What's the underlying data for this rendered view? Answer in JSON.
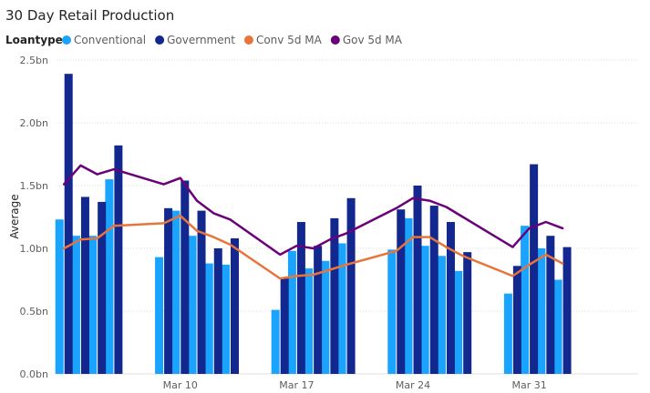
{
  "chart_data": {
    "type": "bar",
    "title": "30 Day Retail Production",
    "legend": {
      "title": "Loantype",
      "position": "top-left",
      "entries": [
        {
          "label": "Conventional",
          "color": "#1aa3ff",
          "kind": "bar"
        },
        {
          "label": "Government",
          "color": "#13288e",
          "kind": "bar"
        },
        {
          "label": "Conv 5d MA",
          "color": "#e8743b",
          "kind": "line"
        },
        {
          "label": "Gov 5d MA",
          "color": "#6b007b",
          "kind": "line"
        }
      ]
    },
    "ylabel": "Average",
    "ylim": [
      0,
      2.5
    ],
    "yticks": [
      {
        "value": 0,
        "label": "0.0bn"
      },
      {
        "value": 0.5,
        "label": "0.5bn"
      },
      {
        "value": 1.0,
        "label": "1.0bn"
      },
      {
        "value": 1.5,
        "label": "1.5bn"
      },
      {
        "value": 2.0,
        "label": "2.0bn"
      },
      {
        "value": 2.5,
        "label": "2.5bn"
      }
    ],
    "grid": true,
    "x_domain": [
      2.55,
      37.55
    ],
    "xticks": [
      {
        "value": 10,
        "label": "Mar 10"
      },
      {
        "value": 17,
        "label": "Mar 17"
      },
      {
        "value": 24,
        "label": "Mar 24"
      },
      {
        "value": 31,
        "label": "Mar 31"
      }
    ],
    "x": [
      3,
      4,
      5,
      6,
      9,
      10,
      11,
      12,
      13,
      16,
      17,
      18,
      19,
      20,
      23,
      24,
      25,
      26,
      27,
      30,
      31,
      32,
      33
    ],
    "series": [
      {
        "name": "Conventional",
        "color": "#1aa3ff",
        "values": [
          1.23,
          1.1,
          1.1,
          1.55,
          0.93,
          1.3,
          1.1,
          0.88,
          0.87,
          0.51,
          0.98,
          0.84,
          0.9,
          1.04,
          0.99,
          1.24,
          1.02,
          0.94,
          0.82,
          0.64,
          1.18,
          1.0,
          0.75
        ]
      },
      {
        "name": "Government",
        "color": "#13288e",
        "values": [
          2.39,
          1.41,
          1.37,
          1.82,
          1.32,
          1.54,
          1.3,
          1.0,
          1.08,
          0.76,
          1.21,
          1.02,
          1.24,
          1.4,
          1.31,
          1.5,
          1.34,
          1.21,
          0.97,
          0.86,
          1.67,
          1.1,
          1.01
        ]
      },
      {
        "name": "Conv 5d MA",
        "color": "#e8743b",
        "values": [
          1.0,
          1.07,
          1.08,
          1.18,
          1.2,
          1.26,
          1.14,
          1.09,
          1.03,
          0.76,
          0.78,
          0.79,
          0.83,
          0.87,
          0.98,
          1.09,
          1.09,
          1.01,
          0.94,
          0.78,
          0.87,
          0.95,
          0.88
        ]
      },
      {
        "name": "Gov 5d MA",
        "color": "#6b007b",
        "values": [
          1.51,
          1.66,
          1.59,
          1.63,
          1.51,
          1.56,
          1.38,
          1.28,
          1.23,
          0.95,
          1.02,
          1.0,
          1.07,
          1.12,
          1.32,
          1.4,
          1.38,
          1.33,
          1.25,
          1.01,
          1.16,
          1.21,
          1.16
        ]
      }
    ]
  }
}
